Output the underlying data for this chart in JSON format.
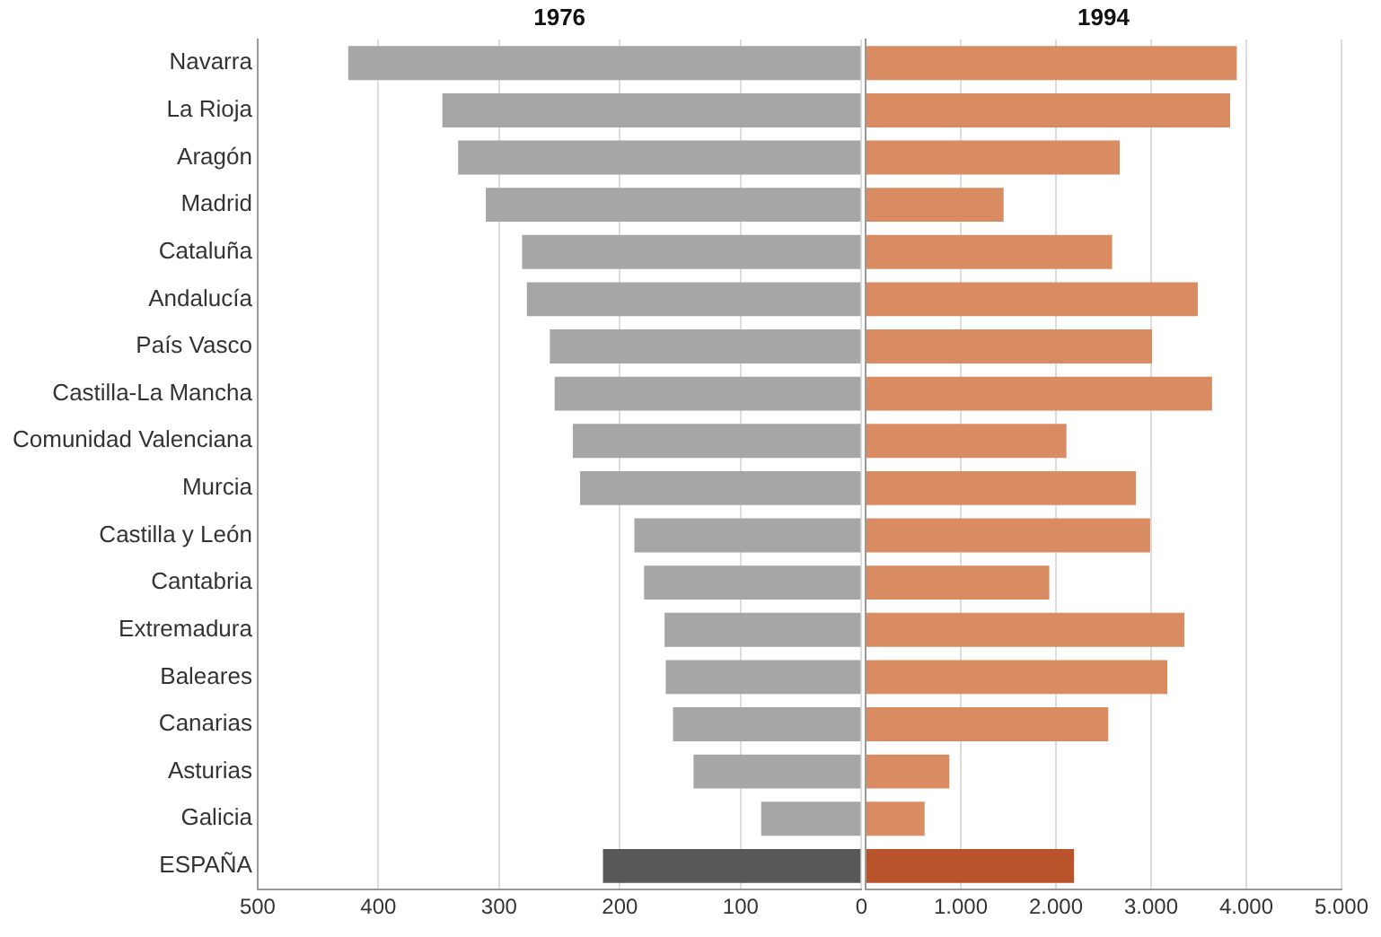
{
  "chart_data": [
    {
      "type": "bar",
      "orientation": "horizontal",
      "title": "1976",
      "categories": [
        "Navarra",
        "La Rioja",
        "Aragón",
        "Madrid",
        "Cataluña",
        "Andalucía",
        "País Vasco",
        "Castilla-La Mancha",
        "Comunidad Valenciana",
        "Murcia",
        "Castilla y León",
        "Cantabria",
        "Extremadura",
        "Baleares",
        "Canarias",
        "Asturias",
        "Galicia",
        "ESPAÑA"
      ],
      "values": [
        425,
        347,
        334,
        311,
        281,
        277,
        258,
        254,
        239,
        233,
        188,
        180,
        163,
        162,
        156,
        139,
        83,
        214
      ],
      "colors": [
        "#a6a6a6",
        "#a6a6a6",
        "#a6a6a6",
        "#a6a6a6",
        "#a6a6a6",
        "#a6a6a6",
        "#a6a6a6",
        "#a6a6a6",
        "#a6a6a6",
        "#a6a6a6",
        "#a6a6a6",
        "#a6a6a6",
        "#a6a6a6",
        "#a6a6a6",
        "#a6a6a6",
        "#a6a6a6",
        "#a6a6a6",
        "#585858"
      ],
      "xlim": [
        500,
        0
      ],
      "xticks": [
        500,
        400,
        300,
        200,
        100,
        0
      ],
      "grid": "x"
    },
    {
      "type": "bar",
      "orientation": "horizontal",
      "title": "1994",
      "categories": [
        null,
        null,
        null,
        null,
        null,
        null,
        null,
        null,
        null,
        null,
        null,
        null,
        null,
        null,
        null,
        null,
        null,
        null
      ],
      "values": [
        3900,
        3830,
        2670,
        1450,
        2590,
        3490,
        3010,
        3640,
        2110,
        2840,
        2990,
        1930,
        3350,
        3170,
        2550,
        880,
        620,
        2190
      ],
      "colors": [
        "#d98c62",
        "#d98c62",
        "#d98c62",
        "#d98c62",
        "#d98c62",
        "#d98c62",
        "#d98c62",
        "#d98c62",
        "#d98c62",
        "#d98c62",
        "#d98c62",
        "#d98c62",
        "#d98c62",
        "#d98c62",
        "#d98c62",
        "#d98c62",
        "#d98c62",
        "#b9532c"
      ],
      "xlim": [
        0,
        5000
      ],
      "xticks": [
        {
          "value": 0,
          "label": null
        },
        {
          "value": 1000,
          "label": "1.000"
        },
        {
          "value": 2000,
          "label": "2.000"
        },
        {
          "value": 3000,
          "label": "3.000"
        },
        {
          "value": 4000,
          "label": "4.000"
        },
        {
          "value": 5000,
          "label": "5.000"
        }
      ],
      "grid": "x",
      "tick_labels": "x"
    }
  ]
}
